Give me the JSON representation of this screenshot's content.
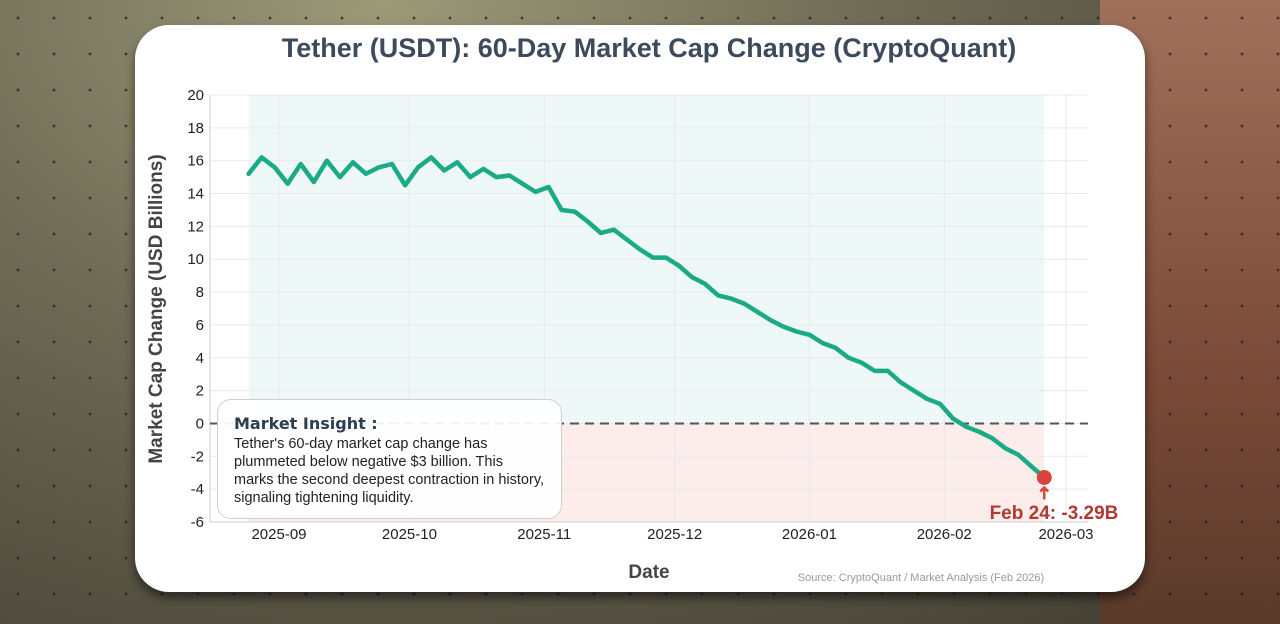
{
  "chart_data": {
    "type": "line",
    "title": "Tether (USDT): 60-Day Market Cap Change (CryptoQuant)",
    "xlabel": "Date",
    "ylabel": "Market Cap Change (USD Billions)",
    "ylim": [
      -6,
      20
    ],
    "xlim": [
      "2025-08-17",
      "2026-03-06"
    ],
    "yticks": [
      20,
      18,
      16,
      14,
      12,
      10,
      8,
      6,
      4,
      2,
      0,
      -2,
      -4,
      -6
    ],
    "xticks": [
      "2025-09",
      "2025-10",
      "2025-11",
      "2025-12",
      "2026-01",
      "2026-02",
      "2026-03"
    ],
    "grid": true,
    "line_color": "#1aaa85",
    "positive_fill": "#eef8f7",
    "negative_fill": "#fcecea",
    "zero_line": "dashed",
    "x": [
      "2025-08-25",
      "2025-08-28",
      "2025-08-31",
      "2025-09-03",
      "2025-09-06",
      "2025-09-09",
      "2025-09-12",
      "2025-09-15",
      "2025-09-18",
      "2025-09-21",
      "2025-09-24",
      "2025-09-27",
      "2025-09-30",
      "2025-10-03",
      "2025-10-06",
      "2025-10-09",
      "2025-10-12",
      "2025-10-15",
      "2025-10-18",
      "2025-10-21",
      "2025-10-24",
      "2025-10-27",
      "2025-10-30",
      "2025-11-02",
      "2025-11-05",
      "2025-11-08",
      "2025-11-11",
      "2025-11-14",
      "2025-11-17",
      "2025-11-20",
      "2025-11-23",
      "2025-11-26",
      "2025-11-29",
      "2025-12-02",
      "2025-12-05",
      "2025-12-08",
      "2025-12-11",
      "2025-12-14",
      "2025-12-17",
      "2025-12-20",
      "2025-12-23",
      "2025-12-26",
      "2025-12-29",
      "2026-01-01",
      "2026-01-04",
      "2026-01-07",
      "2026-01-10",
      "2026-01-13",
      "2026-01-16",
      "2026-01-19",
      "2026-01-22",
      "2026-01-25",
      "2026-01-28",
      "2026-01-31",
      "2026-02-03",
      "2026-02-06",
      "2026-02-09",
      "2026-02-12",
      "2026-02-15",
      "2026-02-18",
      "2026-02-21",
      "2026-02-24"
    ],
    "y": [
      15.2,
      16.2,
      15.6,
      14.6,
      15.8,
      14.7,
      16.0,
      15.0,
      15.9,
      15.2,
      15.6,
      15.8,
      14.5,
      15.6,
      16.2,
      15.4,
      15.9,
      15.0,
      15.5,
      15.0,
      15.1,
      14.6,
      14.1,
      14.4,
      13.0,
      12.9,
      12.3,
      11.6,
      11.8,
      11.2,
      10.6,
      10.1,
      10.1,
      9.6,
      8.9,
      8.5,
      7.8,
      7.6,
      7.3,
      6.8,
      6.3,
      5.9,
      5.6,
      5.4,
      4.9,
      4.6,
      4.0,
      3.7,
      3.2,
      3.2,
      2.5,
      2.0,
      1.5,
      1.2,
      0.3,
      -0.2,
      -0.5,
      -0.9,
      -1.5,
      -1.9,
      -2.6,
      -3.29
    ],
    "highlight": {
      "date": "2026-02-24",
      "value": -3.29,
      "label": "Feb 24: -3.29B",
      "color": "#d9453a",
      "label_color": "#b03a30"
    },
    "annotation": {
      "title": "Market Insight :",
      "text": "Tether's 60-day market cap change has plummeted below negative $3 billion. This marks the second deepest contraction in history, signaling tightening liquidity."
    },
    "source": "Source: CryptoQuant / Market Analysis (Feb 2026)"
  }
}
